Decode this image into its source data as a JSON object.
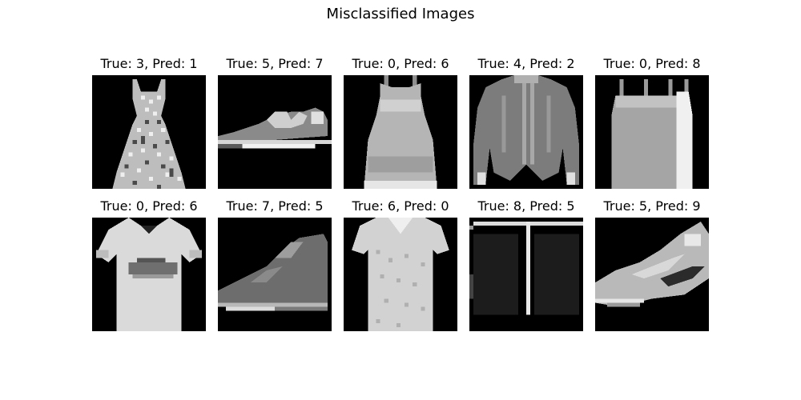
{
  "figure": {
    "title": "Misclassified Images"
  },
  "panels": [
    {
      "label": "True: 3, Pred: 1",
      "true_label": 3,
      "pred_label": 1,
      "depicts": "dress"
    },
    {
      "label": "True: 5, Pred: 7",
      "true_label": 5,
      "pred_label": 7,
      "depicts": "sandal"
    },
    {
      "label": "True: 0, Pred: 6",
      "true_label": 0,
      "pred_label": 6,
      "depicts": "sleeveless top"
    },
    {
      "label": "True: 4, Pred: 2",
      "true_label": 4,
      "pred_label": 2,
      "depicts": "coat"
    },
    {
      "label": "True: 0, Pred: 8",
      "true_label": 0,
      "pred_label": 8,
      "depicts": "tank top"
    },
    {
      "label": "True: 0, Pred: 6",
      "true_label": 0,
      "pred_label": 6,
      "depicts": "t-shirt"
    },
    {
      "label": "True: 7, Pred: 5",
      "true_label": 7,
      "pred_label": 5,
      "depicts": "sneaker"
    },
    {
      "label": "True: 6, Pred: 0",
      "true_label": 6,
      "pred_label": 0,
      "depicts": "blouse"
    },
    {
      "label": "True: 8, Pred: 5",
      "true_label": 8,
      "pred_label": 5,
      "depicts": "bag"
    },
    {
      "label": "True: 5, Pred: 9",
      "true_label": 5,
      "pred_label": 9,
      "depicts": "sneaker"
    }
  ],
  "colors": {
    "background": "#ffffff",
    "image_background": "#000000",
    "text": "#000000"
  }
}
